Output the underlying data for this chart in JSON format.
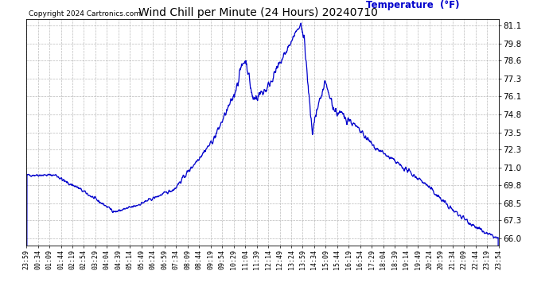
{
  "title": "Wind Chill per Minute (24 Hours) 20240710",
  "ylabel": "Temperature  (°F)",
  "copyright_text": "Copyright 2024 Cartronics.com",
  "line_color": "#0000cc",
  "bg_color": "#ffffff",
  "grid_color": "#aaaaaa",
  "title_color": "#000000",
  "ylabel_color": "#0000cc",
  "yticks": [
    66.0,
    67.3,
    68.5,
    69.8,
    71.0,
    72.3,
    73.5,
    74.8,
    76.1,
    77.3,
    78.6,
    79.8,
    81.1
  ],
  "ylim": [
    65.5,
    81.5
  ],
  "xtick_labels": [
    "23:59",
    "00:34",
    "01:09",
    "01:44",
    "02:19",
    "02:54",
    "03:29",
    "04:04",
    "04:39",
    "05:14",
    "05:49",
    "06:24",
    "06:59",
    "07:34",
    "08:09",
    "08:44",
    "09:19",
    "09:54",
    "10:29",
    "11:04",
    "11:39",
    "12:14",
    "12:49",
    "13:24",
    "13:59",
    "14:34",
    "15:09",
    "15:44",
    "16:19",
    "16:54",
    "17:29",
    "18:04",
    "18:39",
    "19:14",
    "19:49",
    "20:24",
    "20:59",
    "21:34",
    "22:09",
    "22:44",
    "23:19",
    "23:54"
  ],
  "figsize": [
    6.9,
    3.75
  ],
  "dpi": 100
}
